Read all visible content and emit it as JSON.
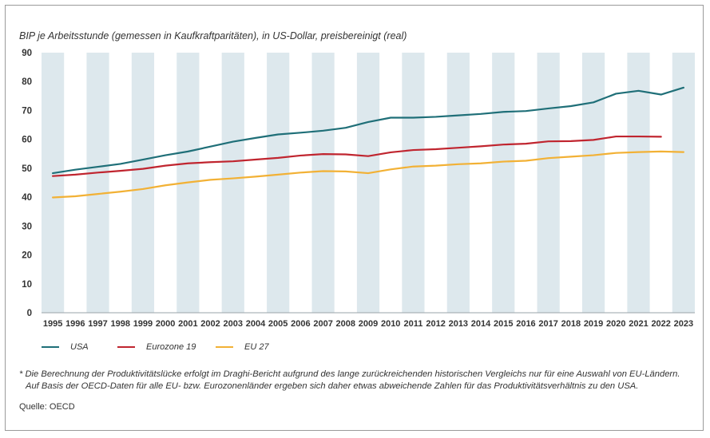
{
  "figure": {
    "footnote_line1": "* Die Berechnung der Produktivitätslücke erfolgt im Draghi-Bericht aufgrund des lange zurückreichenden historischen Vergleichs nur für eine Auswahl von EU-Ländern.",
    "footnote_line2": "Auf Basis der OECD-Daten für alle EU- bzw. Eurozonenländer ergeben sich daher etwas abweichende Zahlen für das Produktivitätsverhältnis zu den USA.",
    "source": "Quelle: OECD"
  },
  "chart_data": {
    "type": "line",
    "title": "BIP je Arbeitsstunde (gemessen in Kaufkraftparitäten), in US-Dollar, preisbereinigt (real)",
    "xlabel": "",
    "ylabel": "",
    "ylim": [
      0,
      90
    ],
    "yticks": [
      0,
      10,
      20,
      30,
      40,
      50,
      60,
      70,
      80,
      90
    ],
    "x": [
      "1995",
      "1996",
      "1997",
      "1998",
      "1999",
      "2000",
      "2001",
      "2002",
      "2003",
      "2004",
      "2005",
      "2006",
      "2007",
      "2008",
      "2009",
      "2010",
      "2011",
      "2012",
      "2013",
      "2014",
      "2015",
      "2016",
      "2017",
      "2018",
      "2019",
      "2020",
      "2021",
      "2022",
      "2023"
    ],
    "grid": "alternating vertical bands",
    "legend_position": "bottom-left",
    "series": [
      {
        "name": "USA",
        "color": "#1f6f78",
        "values": [
          48.3,
          49.5,
          50.5,
          51.5,
          53.0,
          54.5,
          55.8,
          57.5,
          59.2,
          60.5,
          61.7,
          62.3,
          63.0,
          64.0,
          66.0,
          67.5,
          67.5,
          67.8,
          68.3,
          68.8,
          69.5,
          69.8,
          70.7,
          71.5,
          72.8,
          75.8,
          76.8,
          75.5,
          77.9
        ]
      },
      {
        "name": "Eurozone 19",
        "color": "#c0252f",
        "values": [
          47.3,
          47.8,
          48.5,
          49.1,
          49.8,
          50.9,
          51.7,
          52.1,
          52.4,
          53.0,
          53.6,
          54.4,
          54.9,
          54.8,
          54.2,
          55.5,
          56.3,
          56.6,
          57.1,
          57.6,
          58.2,
          58.5,
          59.3,
          59.4,
          59.8,
          61.0,
          61.0,
          60.9,
          null
        ]
      },
      {
        "name": "EU 27",
        "color": "#f2b135",
        "values": [
          39.9,
          40.3,
          41.1,
          41.9,
          42.8,
          44.1,
          45.1,
          46.0,
          46.5,
          47.1,
          47.8,
          48.5,
          49.0,
          48.9,
          48.3,
          49.6,
          50.6,
          50.9,
          51.4,
          51.7,
          52.3,
          52.6,
          53.5,
          54.0,
          54.5,
          55.3,
          55.6,
          55.8,
          55.6
        ]
      }
    ]
  }
}
